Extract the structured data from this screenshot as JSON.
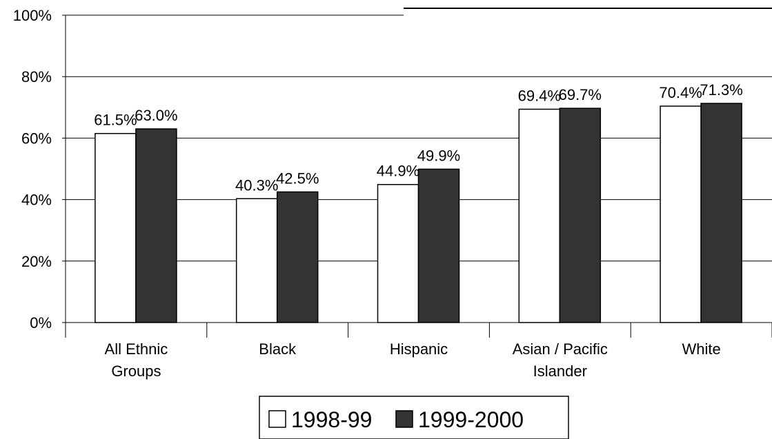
{
  "chart_data": {
    "type": "bar",
    "categories": [
      [
        "All Ethnic",
        "Groups"
      ],
      [
        "Black"
      ],
      [
        "Hispanic"
      ],
      [
        "Asian / Pacific",
        "Islander"
      ],
      [
        "White"
      ]
    ],
    "series": [
      {
        "name": "1998-99",
        "values": [
          61.5,
          40.3,
          44.9,
          69.4,
          70.4
        ],
        "labels": [
          "61.5%",
          "40.3%",
          "44.9%",
          "69.4%",
          "70.4%"
        ],
        "color": "#ffffff"
      },
      {
        "name": "1999-2000",
        "values": [
          63.0,
          42.5,
          49.9,
          69.7,
          71.3
        ],
        "labels": [
          "63.0%",
          "42.5%",
          "49.9%",
          "69.7%",
          "71.3%"
        ],
        "color": "#333333"
      }
    ],
    "ylim": [
      0,
      100
    ],
    "yticks": [
      {
        "value": 0,
        "label": "0%"
      },
      {
        "value": 20,
        "label": "20%"
      },
      {
        "value": 40,
        "label": "40%"
      },
      {
        "value": 60,
        "label": "60%"
      },
      {
        "value": 80,
        "label": "80%"
      },
      {
        "value": 100,
        "label": "100%"
      }
    ],
    "grid": true,
    "legend_position": "bottom-center"
  }
}
